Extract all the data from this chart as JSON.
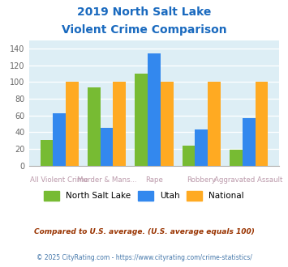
{
  "title_line1": "2019 North Salt Lake",
  "title_line2": "Violent Crime Comparison",
  "title_color": "#1a6abf",
  "categories": [
    "All Violent Crime",
    "Murder & Mans...",
    "Rape",
    "Robbery",
    "Aggravated Assault"
  ],
  "north_salt_lake": [
    31,
    93,
    110,
    24,
    19
  ],
  "utah": [
    62,
    45,
    134,
    43,
    57
  ],
  "national": [
    100,
    100,
    100,
    100,
    100
  ],
  "color_nsl": "#77bb33",
  "color_utah": "#3388ee",
  "color_national": "#ffaa22",
  "ylim": [
    0,
    150
  ],
  "yticks": [
    0,
    20,
    40,
    60,
    80,
    100,
    120,
    140
  ],
  "bg_color": "#ddeef5",
  "footnote1": "Compared to U.S. average. (U.S. average equals 100)",
  "footnote2": "© 2025 CityRating.com - https://www.cityrating.com/crime-statistics/",
  "footnote1_color": "#993300",
  "footnote2_color": "#4477aa",
  "xlabel_color": "#bb99aa",
  "top_xlabels": [
    "",
    "Murder & Mans...",
    "",
    "Robbery",
    ""
  ],
  "bot_xlabels": [
    "All Violent Crime",
    "",
    "Rape",
    "",
    "Aggravated Assault"
  ]
}
